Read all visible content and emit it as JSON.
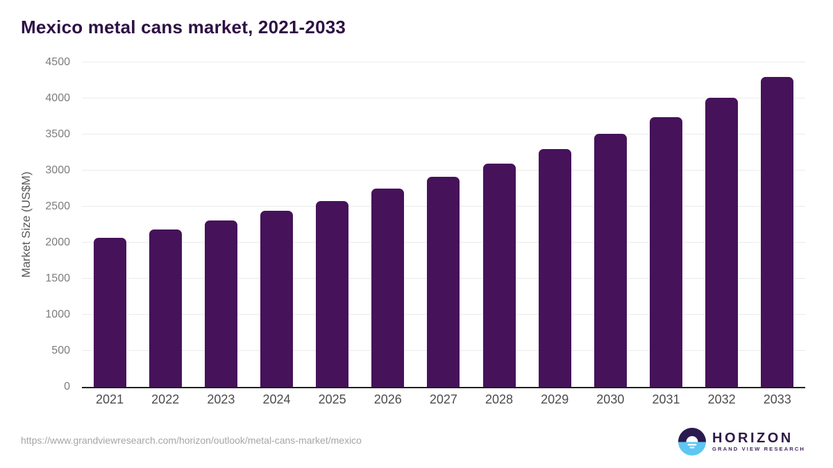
{
  "title": "Mexico metal cans market, 2021-2033",
  "y_axis": {
    "label": "Market Size (US$M)"
  },
  "footer": {
    "source_url": "https://www.grandviewresearch.com/horizon/outlook/metal-cans-market/mexico",
    "logo": {
      "name": "HORIZON",
      "subtitle": "GRAND VIEW RESEARCH"
    }
  },
  "colors": {
    "bar": "#46125a",
    "title": "#2e1045",
    "gridline": "#ebebeb",
    "axis_line": "#1f1f1f",
    "logo_blue": "#5ec6f2",
    "logo_purple": "#2b1a4e"
  },
  "chart_data": {
    "type": "bar",
    "title": "Mexico metal cans market, 2021-2033",
    "xlabel": "",
    "ylabel": "Market Size (US$M)",
    "categories": [
      "2021",
      "2022",
      "2023",
      "2024",
      "2025",
      "2026",
      "2027",
      "2028",
      "2029",
      "2030",
      "2031",
      "2032",
      "2033"
    ],
    "values": [
      2070,
      2185,
      2310,
      2440,
      2580,
      2750,
      2915,
      3095,
      3295,
      3505,
      3745,
      4010,
      4295
    ],
    "ylim": [
      0,
      4500
    ],
    "yticks": [
      0,
      500,
      1000,
      1500,
      2000,
      2500,
      3000,
      3500,
      4000,
      4500
    ],
    "grid": true,
    "legend": false,
    "bar_color": "#46125a"
  }
}
